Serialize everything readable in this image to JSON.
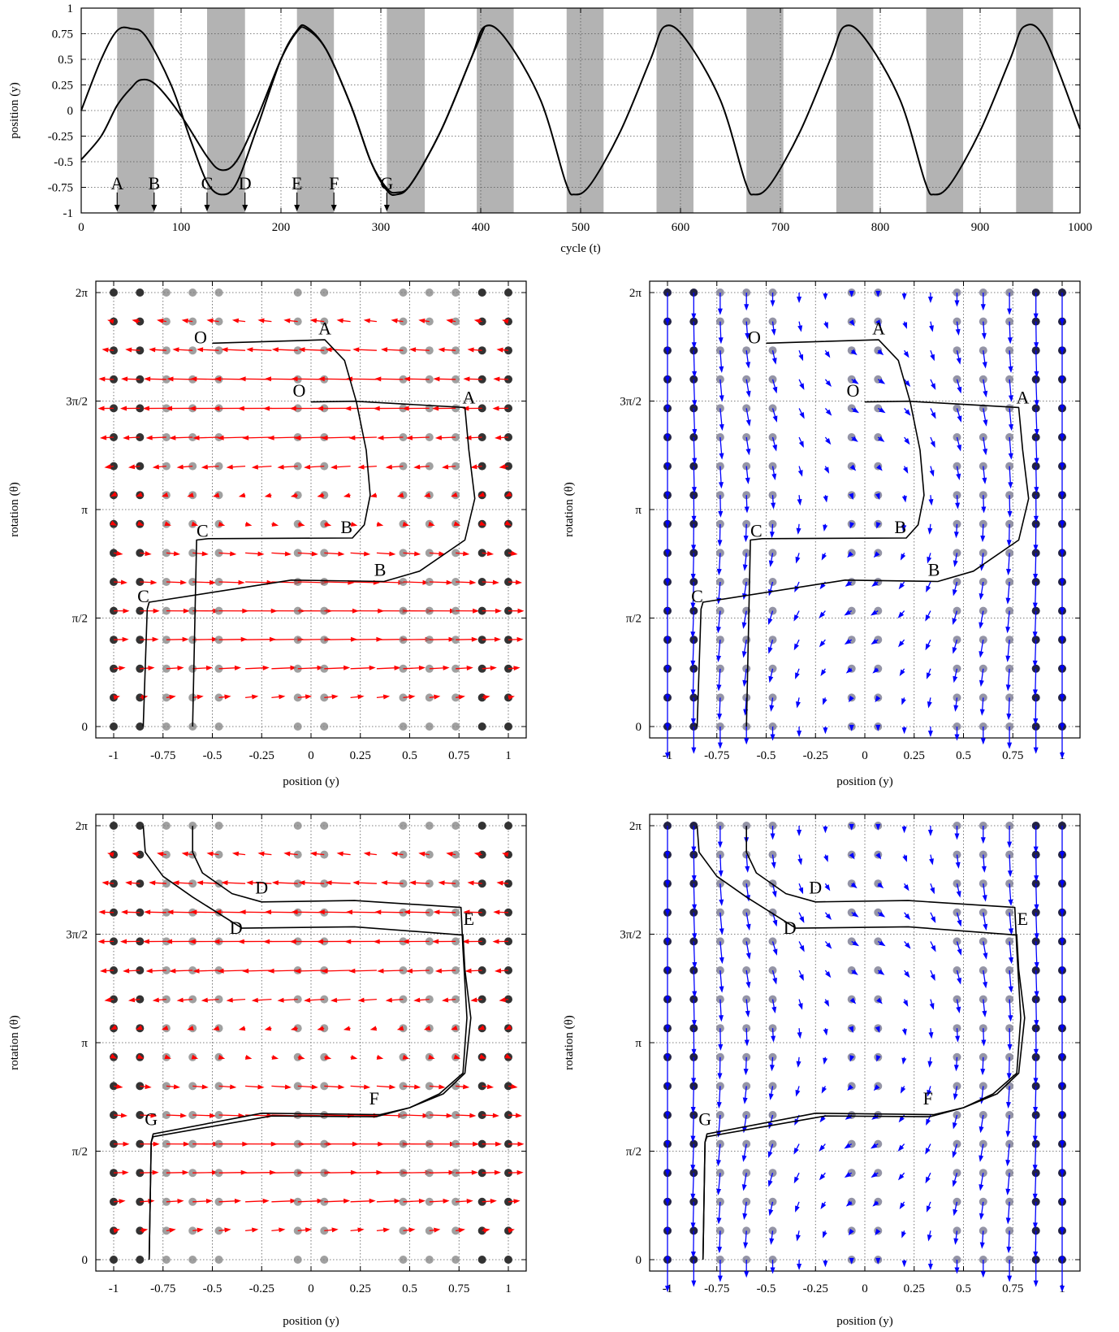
{
  "chart_data": [
    {
      "id": "timeseries",
      "type": "line",
      "xlabel": "cycle (t)",
      "ylabel": "position (y)",
      "xlim": [
        0,
        1000
      ],
      "ylim": [
        -1,
        1
      ],
      "xticks": [
        "0",
        "100",
        "200",
        "300",
        "400",
        "500",
        "600",
        "700",
        "800",
        "900",
        "1000"
      ],
      "yticks": [
        "-1",
        "-0.75",
        "-0.5",
        "-0.25",
        "0",
        "0.25",
        "0.5",
        "0.75",
        "1"
      ],
      "grid": true,
      "shaded_intervals": [
        [
          36,
          73
        ],
        [
          126,
          164
        ],
        [
          216,
          253
        ],
        [
          306,
          344
        ],
        [
          396,
          433
        ],
        [
          486,
          523
        ],
        [
          576,
          613
        ],
        [
          666,
          703
        ],
        [
          756,
          793
        ],
        [
          846,
          883
        ],
        [
          936,
          973
        ]
      ],
      "markers": [
        {
          "label": "A",
          "t": 36
        },
        {
          "label": "B",
          "t": 73
        },
        {
          "label": "C",
          "t": 126
        },
        {
          "label": "D",
          "t": 164
        },
        {
          "label": "E",
          "t": 216
        },
        {
          "label": "F",
          "t": 253
        },
        {
          "label": "G",
          "t": 306
        }
      ],
      "series": [
        {
          "x": [
            0,
            20,
            36,
            50,
            65,
            90,
            110,
            126,
            140,
            155,
            175,
            200,
            216,
            225,
            245,
            270,
            290,
            306,
            316,
            330,
            360,
            390,
            404,
            425,
            460,
            485,
            494,
            510,
            540,
            570,
            584,
            605,
            640,
            665,
            674,
            690,
            720,
            750,
            764,
            785,
            820,
            845,
            854,
            870,
            900,
            930,
            944,
            965,
            1000
          ],
          "y": [
            0,
            0.5,
            0.78,
            0.8,
            0.72,
            0.25,
            -0.3,
            -0.7,
            -0.82,
            -0.72,
            -0.2,
            0.5,
            0.78,
            0.82,
            0.6,
            0.05,
            -0.5,
            -0.78,
            -0.82,
            -0.72,
            -0.2,
            0.5,
            0.82,
            0.7,
            0.1,
            -0.7,
            -0.82,
            -0.72,
            -0.2,
            0.5,
            0.82,
            0.7,
            0.1,
            -0.7,
            -0.82,
            -0.72,
            -0.2,
            0.5,
            0.82,
            0.7,
            0.1,
            -0.7,
            -0.82,
            -0.72,
            -0.2,
            0.5,
            0.82,
            0.7,
            -0.18
          ]
        },
        {
          "x": [
            0,
            20,
            36,
            50,
            60,
            75,
            100,
            126,
            140,
            155,
            175,
            200,
            216,
            225,
            245,
            270,
            290,
            306,
            316,
            330,
            360,
            390,
            404
          ],
          "y": [
            -0.48,
            -0.25,
            0.05,
            0.22,
            0.3,
            0.25,
            -0.05,
            -0.45,
            -0.58,
            -0.5,
            -0.1,
            0.5,
            0.77,
            0.8,
            0.6,
            0.05,
            -0.5,
            -0.76,
            -0.8,
            -0.72,
            -0.2,
            0.5,
            0.82
          ]
        }
      ]
    },
    {
      "id": "phase-red-1",
      "type": "vector-field",
      "xlabel": "position (y)",
      "ylabel": "rotation (θ)",
      "xlim": [
        -1,
        1
      ],
      "ylim": [
        0,
        6.2832
      ],
      "xticks": [
        "-1",
        "-0.75",
        "-0.5",
        "-0.25",
        "0",
        "0.25",
        "0.5",
        "0.75",
        "1"
      ],
      "yticks": [
        "0",
        "π/2",
        "π",
        "3π/2",
        "2π"
      ],
      "field_color": "#ff0000",
      "dot_color_strong": "#333333",
      "dot_color_weak": "#808080",
      "paths": [
        {
          "points": [
            [
              -0.5,
              5.55
            ],
            [
              0.07,
              5.6
            ],
            [
              0.17,
              5.3
            ],
            [
              0.23,
              4.7
            ],
            [
              0.28,
              4.0
            ],
            [
              0.3,
              3.35
            ],
            [
              0.27,
              2.92
            ],
            [
              0.21,
              2.73
            ],
            [
              -0.52,
              2.72
            ],
            [
              -0.58,
              2.7
            ],
            [
              -0.6,
              0
            ]
          ]
        },
        {
          "points": [
            [
              0,
              4.7
            ],
            [
              0.22,
              4.71
            ],
            [
              0.78,
              4.62
            ],
            [
              0.8,
              4.0
            ],
            [
              0.83,
              3.3
            ],
            [
              0.78,
              2.7
            ],
            [
              0.55,
              2.25
            ],
            [
              0.37,
              2.1
            ],
            [
              -0.1,
              2.12
            ],
            [
              -0.82,
              1.8
            ],
            [
              -0.83,
              1.7
            ],
            [
              -0.85,
              0
            ]
          ]
        }
      ],
      "labels": [
        {
          "text": "O",
          "x": -0.56,
          "y": 5.55
        },
        {
          "text": "A",
          "x": 0.07,
          "y": 5.68
        },
        {
          "text": "O",
          "x": -0.06,
          "y": 4.78
        },
        {
          "text": "A",
          "x": 0.8,
          "y": 4.68
        },
        {
          "text": "B",
          "x": 0.18,
          "y": 2.8
        },
        {
          "text": "C",
          "x": -0.55,
          "y": 2.75
        },
        {
          "text": "B",
          "x": 0.35,
          "y": 2.18
        },
        {
          "text": "C",
          "x": -0.85,
          "y": 1.8
        }
      ]
    },
    {
      "id": "phase-blue-1",
      "type": "vector-field",
      "xlabel": "position (y)",
      "ylabel": "rotation (θ)",
      "xlim": [
        -1,
        1
      ],
      "ylim": [
        0,
        6.2832
      ],
      "xticks": [
        "-1",
        "-0.75",
        "-0.5",
        "-0.25",
        "0",
        "0.25",
        "0.5",
        "0.75",
        "1"
      ],
      "yticks": [
        "0",
        "π/2",
        "π",
        "3π/2",
        "2π"
      ],
      "field_color": "#0000ff",
      "dot_color_strong": "#222244",
      "dot_color_weak": "#707088",
      "paths": [
        {
          "points": [
            [
              -0.5,
              5.55
            ],
            [
              0.07,
              5.6
            ],
            [
              0.17,
              5.3
            ],
            [
              0.23,
              4.7
            ],
            [
              0.28,
              4.0
            ],
            [
              0.3,
              3.35
            ],
            [
              0.27,
              2.92
            ],
            [
              0.21,
              2.73
            ],
            [
              -0.52,
              2.72
            ],
            [
              -0.58,
              2.7
            ],
            [
              -0.6,
              0
            ]
          ]
        },
        {
          "points": [
            [
              0,
              4.7
            ],
            [
              0.22,
              4.71
            ],
            [
              0.78,
              4.62
            ],
            [
              0.8,
              4.0
            ],
            [
              0.83,
              3.3
            ],
            [
              0.78,
              2.7
            ],
            [
              0.55,
              2.25
            ],
            [
              0.37,
              2.1
            ],
            [
              -0.1,
              2.12
            ],
            [
              -0.82,
              1.8
            ],
            [
              -0.83,
              1.7
            ],
            [
              -0.85,
              0
            ]
          ]
        }
      ],
      "labels": [
        {
          "text": "O",
          "x": -0.56,
          "y": 5.55
        },
        {
          "text": "A",
          "x": 0.07,
          "y": 5.68
        },
        {
          "text": "O",
          "x": -0.06,
          "y": 4.78
        },
        {
          "text": "A",
          "x": 0.8,
          "y": 4.68
        },
        {
          "text": "B",
          "x": 0.18,
          "y": 2.8
        },
        {
          "text": "C",
          "x": -0.55,
          "y": 2.75
        },
        {
          "text": "B",
          "x": 0.35,
          "y": 2.18
        },
        {
          "text": "C",
          "x": -0.85,
          "y": 1.8
        }
      ]
    },
    {
      "id": "phase-red-2",
      "type": "vector-field",
      "xlabel": "position (y)",
      "ylabel": "rotation (θ)",
      "xlim": [
        -1,
        1
      ],
      "ylim": [
        0,
        6.2832
      ],
      "xticks": [
        "-1",
        "-0.75",
        "-0.5",
        "-0.25",
        "0",
        "0.25",
        "0.5",
        "0.75",
        "1"
      ],
      "yticks": [
        "0",
        "π/2",
        "π",
        "3π/2",
        "2π"
      ],
      "field_color": "#ff0000",
      "dot_color_strong": "#333333",
      "dot_color_weak": "#808080",
      "paths": [
        {
          "points": [
            [
              -0.6,
              6.28
            ],
            [
              -0.6,
              5.9
            ],
            [
              -0.55,
              5.6
            ],
            [
              -0.4,
              5.3
            ],
            [
              -0.25,
              5.18
            ],
            [
              0.22,
              5.2
            ],
            [
              0.76,
              5.1
            ],
            [
              0.77,
              4.5
            ],
            [
              0.79,
              3.5
            ],
            [
              0.77,
              2.7
            ],
            [
              0.65,
              2.4
            ],
            [
              0.5,
              2.2
            ],
            [
              0.35,
              2.1
            ],
            [
              -0.25,
              2.12
            ],
            [
              -0.8,
              1.82
            ],
            [
              -0.81,
              1.7
            ],
            [
              -0.82,
              0
            ]
          ]
        },
        {
          "points": [
            [
              -0.85,
              6.28
            ],
            [
              -0.84,
              5.9
            ],
            [
              -0.75,
              5.55
            ],
            [
              -0.6,
              5.25
            ],
            [
              -0.35,
              4.8
            ],
            [
              0.22,
              4.82
            ],
            [
              0.77,
              4.7
            ],
            [
              0.78,
              4.2
            ],
            [
              0.81,
              3.5
            ],
            [
              0.78,
              2.7
            ],
            [
              0.67,
              2.4
            ],
            [
              0.5,
              2.2
            ],
            [
              0.33,
              2.07
            ],
            [
              -0.2,
              2.08
            ],
            [
              -0.8,
              1.78
            ],
            [
              -0.81,
              1.7
            ],
            [
              -0.82,
              0
            ]
          ]
        }
      ],
      "labels": [
        {
          "text": "D",
          "x": -0.25,
          "y": 5.3
        },
        {
          "text": "E",
          "x": 0.8,
          "y": 4.85
        },
        {
          "text": "D",
          "x": -0.38,
          "y": 4.72
        },
        {
          "text": "F",
          "x": 0.32,
          "y": 2.25
        },
        {
          "text": "G",
          "x": -0.81,
          "y": 1.95
        }
      ]
    },
    {
      "id": "phase-blue-2",
      "type": "vector-field",
      "xlabel": "position (y)",
      "ylabel": "rotation (θ)",
      "xlim": [
        -1,
        1
      ],
      "ylim": [
        0,
        6.2832
      ],
      "xticks": [
        "-1",
        "-0.75",
        "-0.5",
        "-0.25",
        "0",
        "0.25",
        "0.5",
        "0.75",
        "1"
      ],
      "yticks": [
        "0",
        "π/2",
        "π",
        "3π/2",
        "2π"
      ],
      "field_color": "#0000ff",
      "dot_color_strong": "#222244",
      "dot_color_weak": "#707088",
      "paths": [
        {
          "points": [
            [
              -0.6,
              6.28
            ],
            [
              -0.6,
              5.9
            ],
            [
              -0.55,
              5.6
            ],
            [
              -0.4,
              5.3
            ],
            [
              -0.25,
              5.18
            ],
            [
              0.22,
              5.2
            ],
            [
              0.76,
              5.1
            ],
            [
              0.77,
              4.5
            ],
            [
              0.79,
              3.5
            ],
            [
              0.77,
              2.7
            ],
            [
              0.65,
              2.4
            ],
            [
              0.5,
              2.2
            ],
            [
              0.35,
              2.1
            ],
            [
              -0.25,
              2.12
            ],
            [
              -0.8,
              1.82
            ],
            [
              -0.81,
              1.7
            ],
            [
              -0.82,
              0
            ]
          ]
        },
        {
          "points": [
            [
              -0.85,
              6.28
            ],
            [
              -0.84,
              5.9
            ],
            [
              -0.75,
              5.55
            ],
            [
              -0.6,
              5.25
            ],
            [
              -0.35,
              4.8
            ],
            [
              0.22,
              4.82
            ],
            [
              0.77,
              4.7
            ],
            [
              0.78,
              4.2
            ],
            [
              0.81,
              3.5
            ],
            [
              0.78,
              2.7
            ],
            [
              0.67,
              2.4
            ],
            [
              0.5,
              2.2
            ],
            [
              0.33,
              2.07
            ],
            [
              -0.2,
              2.08
            ],
            [
              -0.8,
              1.78
            ],
            [
              -0.81,
              1.7
            ],
            [
              -0.82,
              0
            ]
          ]
        }
      ],
      "labels": [
        {
          "text": "D",
          "x": -0.25,
          "y": 5.3
        },
        {
          "text": "E",
          "x": 0.8,
          "y": 4.85
        },
        {
          "text": "D",
          "x": -0.38,
          "y": 4.72
        },
        {
          "text": "F",
          "x": 0.32,
          "y": 2.25
        },
        {
          "text": "G",
          "x": -0.81,
          "y": 1.95
        }
      ]
    }
  ]
}
